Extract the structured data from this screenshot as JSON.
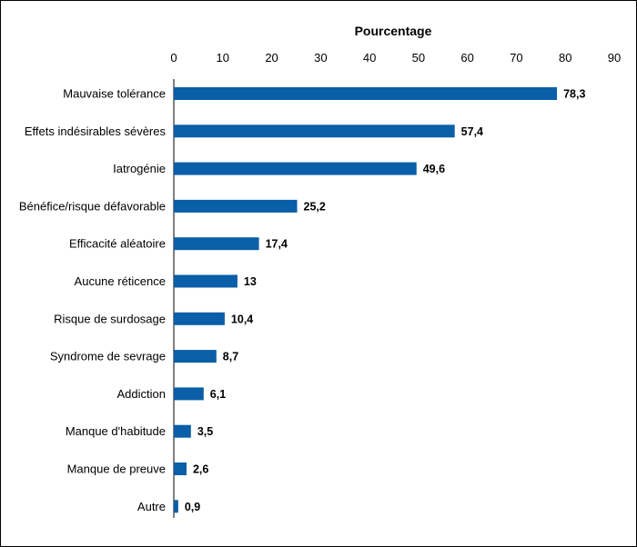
{
  "chart_data": {
    "type": "bar",
    "orientation": "horizontal",
    "title": "",
    "xlabel": "Pourcentage",
    "ylabel": "",
    "xlim": [
      0,
      90
    ],
    "xticks": [
      0,
      10,
      20,
      30,
      40,
      50,
      60,
      70,
      80,
      90
    ],
    "grid": false,
    "categories": [
      "Mauvaise tolérance",
      "Effets indésirables sévères",
      "Iatrogénie",
      "Bénéfice/risque défavorable",
      "Efficacité aléatoire",
      "Aucune réticence",
      "Risque de surdosage",
      "Syndrome de sevrage",
      "Addiction",
      "Manque d'habitude",
      "Manque de preuve",
      "Autre"
    ],
    "values": [
      78.3,
      57.4,
      49.6,
      25.2,
      17.4,
      13,
      10.4,
      8.7,
      6.1,
      3.5,
      2.6,
      0.9
    ],
    "value_labels": [
      "78,3",
      "57,4",
      "49,6",
      "25,2",
      "17,4",
      "13",
      "10,4",
      "8,7",
      "6,1",
      "3,5",
      "2,6",
      "0,9"
    ],
    "bar_color": "#0b5ea8"
  }
}
